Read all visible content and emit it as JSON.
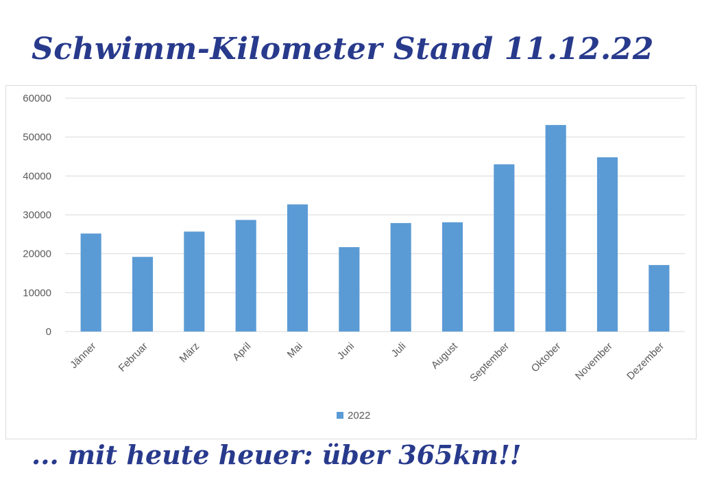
{
  "headline": "Schwimm-Kilometer Stand 11.12.22",
  "footer_note": "... mit heute heuer: über 365km!!",
  "chart_data": {
    "type": "bar",
    "categories": [
      "Jänner",
      "Februar",
      "März",
      "April",
      "Mai",
      "Juni",
      "Juli",
      "August",
      "September",
      "Oktober",
      "November",
      "Dezember"
    ],
    "series": [
      {
        "name": "2022",
        "color": "#5b9bd5",
        "values": [
          25200,
          19200,
          25700,
          28700,
          32700,
          21700,
          27900,
          28100,
          43000,
          53100,
          44800,
          17100
        ]
      }
    ],
    "ylim": [
      0,
      60000
    ],
    "yticks": [
      0,
      10000,
      20000,
      30000,
      40000,
      50000,
      60000
    ],
    "grid": true,
    "legend": "bottom",
    "colors": {
      "text": "#595959",
      "grid": "#d9d9d9",
      "title": "#283a8c"
    }
  }
}
